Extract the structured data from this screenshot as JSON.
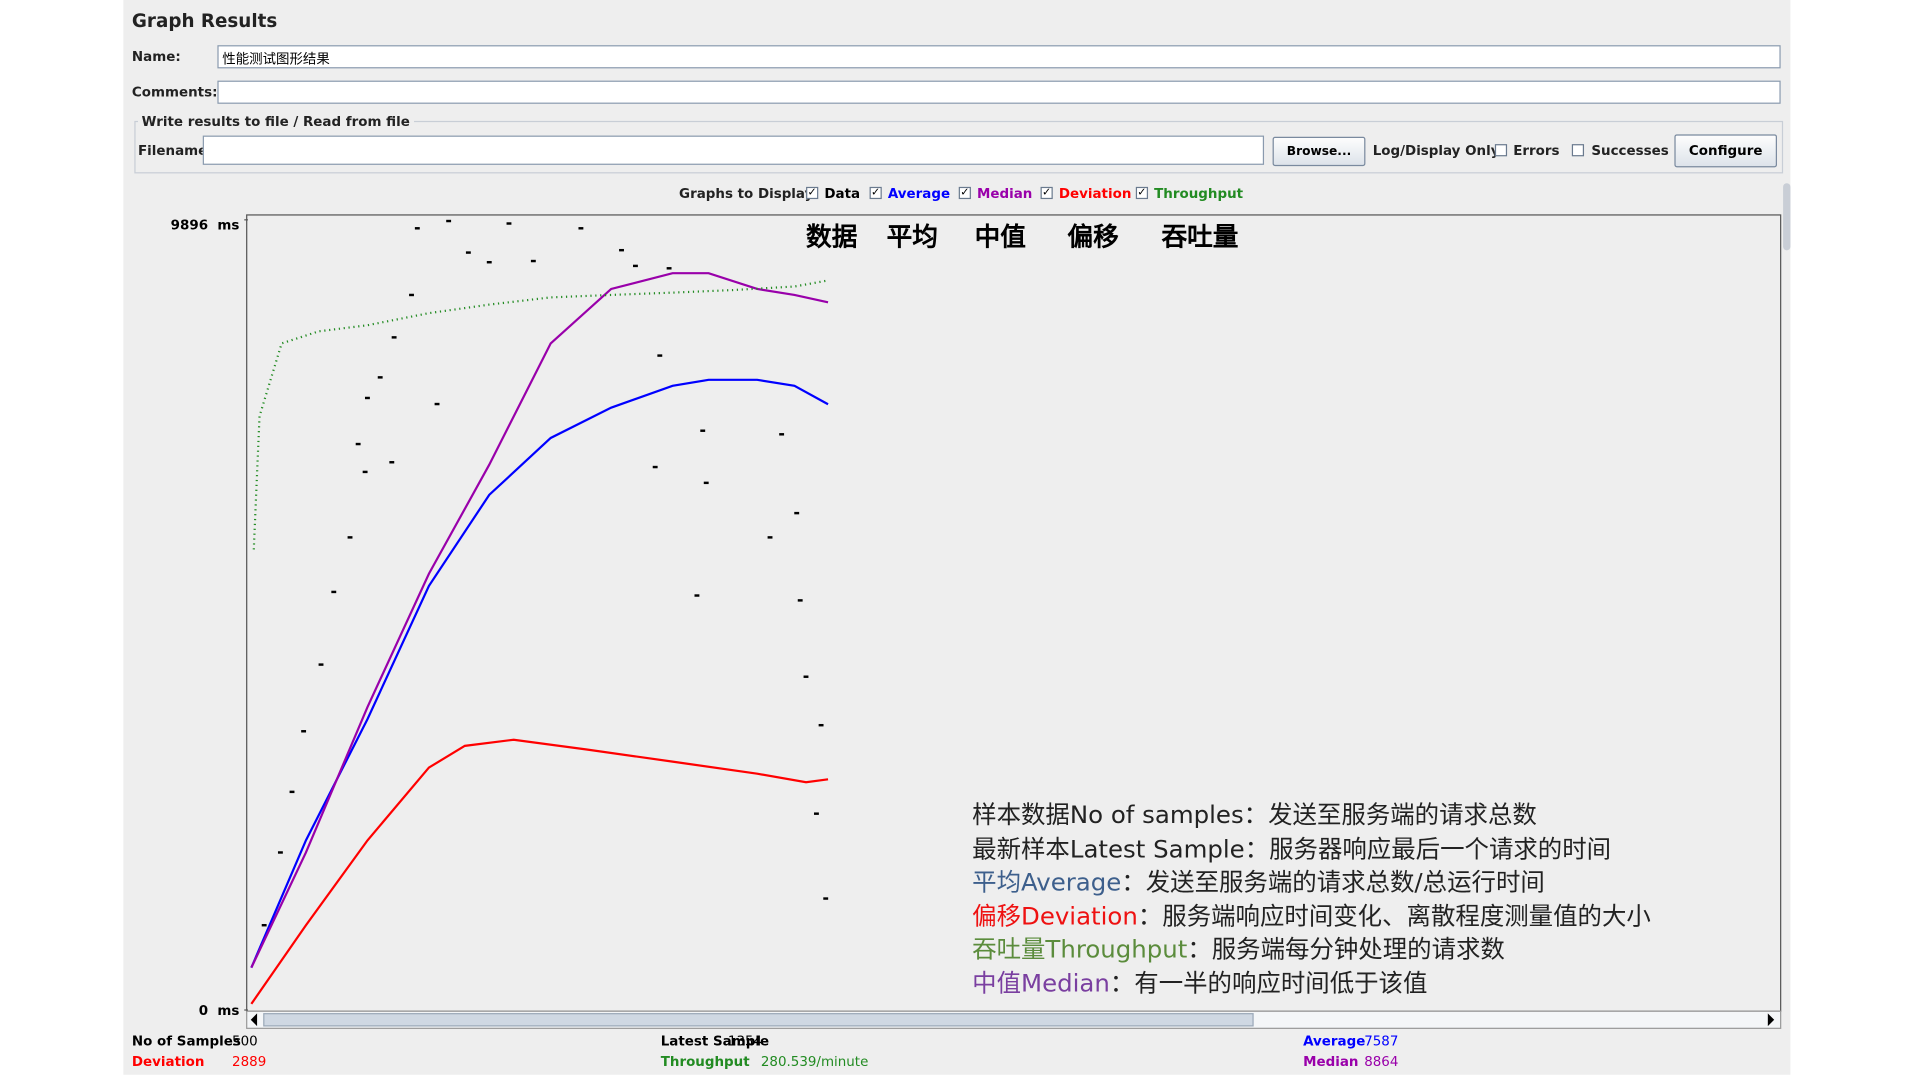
{
  "header": {
    "title": "Graph Results"
  },
  "form": {
    "name_label": "Name:",
    "name_value": "性能测试图形结果",
    "comments_label": "Comments:",
    "file_group": "Write results to file / Read from file",
    "filename_label": "Filename",
    "browse": "Browse...",
    "log_display": "Log/Display Only:",
    "errors": "Errors",
    "successes": "Successes",
    "configure": "Configure",
    "graphs_to_display": "Graphs to Display"
  },
  "chart_data": {
    "type": "line",
    "xlim": [
      0,
      1320
    ],
    "ylim": [
      0,
      9896
    ],
    "yticks": [
      {
        "value": 9896,
        "label": "9896  ms"
      },
      {
        "value": 0,
        "label": "0  ms"
      }
    ],
    "series": [
      {
        "name": "Data",
        "color": "#000000",
        "markers": true,
        "x": [
          146,
          173,
          225,
          287,
          190,
          208,
          246,
          322,
          334,
          363,
          141,
          126,
          114,
          103,
          95,
          101,
          124,
          163,
          88,
          74,
          63,
          48,
          38,
          28,
          14,
          355,
          392,
          351,
          395,
          450,
          473,
          476,
          460,
          387,
          481,
          494,
          490,
          498
        ],
        "values": [
          9790,
          9881,
          9850,
          9790,
          9486,
          9365,
          9380,
          9516,
          9319,
          9289,
          8955,
          8424,
          7923,
          7665,
          7088,
          6739,
          6860,
          7589,
          5919,
          5236,
          4326,
          3491,
          2732,
          1973,
          1062,
          8196,
          7255,
          6800,
          6602,
          5919,
          6223,
          5130,
          7210,
          5191,
          4174,
          3567,
          2459,
          1396
        ]
      },
      {
        "name": "Average",
        "color": "#0000ff",
        "x": [
          3,
          50,
          103,
          156,
          208,
          261,
          313,
          366,
          397,
          439,
          471,
          500
        ],
        "values": [
          531,
          2125,
          3643,
          5312,
          6451,
          7164,
          7543,
          7817,
          7892,
          7892,
          7817,
          7587
        ]
      },
      {
        "name": "Median",
        "color": "#9900aa",
        "x": [
          3,
          50,
          103,
          156,
          208,
          261,
          313,
          366,
          397,
          439,
          471,
          500
        ],
        "values": [
          531,
          1973,
          3795,
          5464,
          6830,
          8348,
          9031,
          9228,
          9228,
          9031,
          8955,
          8864
        ]
      },
      {
        "name": "Deviation",
        "color": "#ff0000",
        "x": [
          3,
          50,
          103,
          156,
          187,
          229,
          292,
          366,
          439,
          481,
          500
        ],
        "values": [
          76,
          1062,
          2125,
          3036,
          3309,
          3385,
          3263,
          3111,
          2960,
          2853,
          2889
        ]
      },
      {
        "name": "Throughput",
        "color": "#228b22",
        "x": [
          5,
          10,
          29,
          61,
          103,
          156,
          208,
          261,
          313,
          366,
          418,
          471,
          500
        ],
        "values": [
          5768,
          7437,
          8348,
          8500,
          8576,
          8727,
          8834,
          8925,
          8955,
          8985,
          9016,
          9061,
          9137
        ]
      }
    ],
    "annotations": [
      "数据",
      "平均",
      "中值",
      "偏移",
      "吞吐量"
    ],
    "notes": [
      {
        "term": "样本数据No of samples",
        "text": "：发送至服务端的请求总数",
        "color": "#222222"
      },
      {
        "term": "最新样本Latest Sample",
        "text": "：服务器响应最后一个请求的时间",
        "color": "#222222"
      },
      {
        "term": "平均Average",
        "text": "：发送至服务端的请求总数/总运行时间",
        "color": "#3d5f8c"
      },
      {
        "term": "偏移Deviation",
        "text": "：服务端响应时间变化、离散程度测量值的大小",
        "color": "#ee1111"
      },
      {
        "term": "吞吐量Throughput",
        "text": "：服务端每分钟处理的请求数",
        "color": "#5b8c3c"
      },
      {
        "term": "中值Median",
        "text": "：有一半的响应时间低于该值",
        "color": "#7a3fa0"
      }
    ]
  },
  "stats": [
    {
      "label": "No of Samples",
      "value": "500",
      "color": "#000000"
    },
    {
      "label": "Deviation",
      "value": "2889",
      "color": "#ff0000"
    },
    {
      "label": "Latest Sample",
      "value": "1354",
      "color": "#000000"
    },
    {
      "label": "Throughput",
      "value": "280.539/minute",
      "color": "#228b22"
    },
    {
      "label": "Average",
      "value": "7587",
      "color": "#0000ff"
    },
    {
      "label": "Median",
      "value": "8864",
      "color": "#9900aa"
    }
  ]
}
